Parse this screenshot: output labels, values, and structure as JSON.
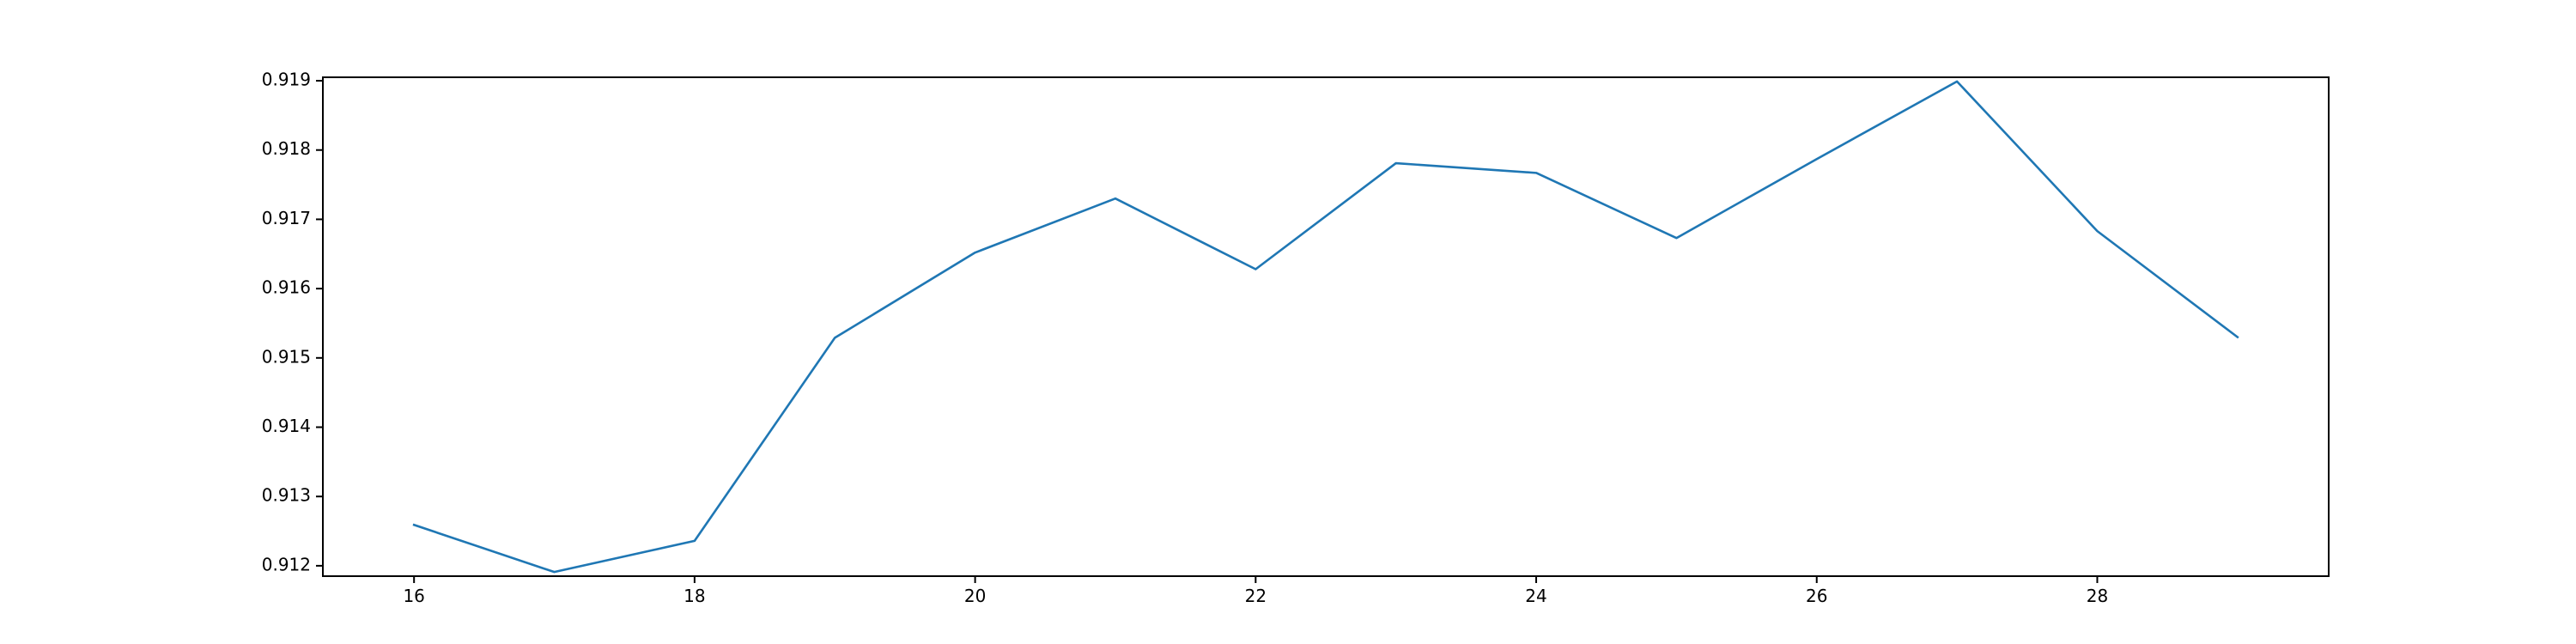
{
  "chart_data": {
    "type": "line",
    "title": "",
    "xlabel": "",
    "ylabel": "",
    "x": [
      16,
      17,
      18,
      19,
      20,
      21,
      22,
      23,
      24,
      25,
      26,
      27,
      28,
      29
    ],
    "series": [
      {
        "values": [
          0.91259,
          0.91191,
          0.91236,
          0.91529,
          0.91652,
          0.9173,
          0.91628,
          0.91781,
          0.91767,
          0.91673,
          0.91787,
          0.91899,
          0.91683,
          0.9153
        ],
        "color": "#1f77b4"
      }
    ],
    "xlim": [
      15.35,
      29.65
    ],
    "ylim": [
      0.91185,
      0.91905
    ],
    "x_ticks": [
      16,
      18,
      20,
      22,
      24,
      26,
      28
    ],
    "x_tick_labels": [
      "16",
      "18",
      "20",
      "22",
      "24",
      "26",
      "28"
    ],
    "y_ticks": [
      0.912,
      0.913,
      0.914,
      0.915,
      0.916,
      0.917,
      0.918,
      0.919
    ],
    "y_tick_labels": [
      "0.912",
      "0.913",
      "0.914",
      "0.915",
      "0.916",
      "0.917",
      "0.918",
      "0.919"
    ],
    "grid": false,
    "legend": "none"
  }
}
